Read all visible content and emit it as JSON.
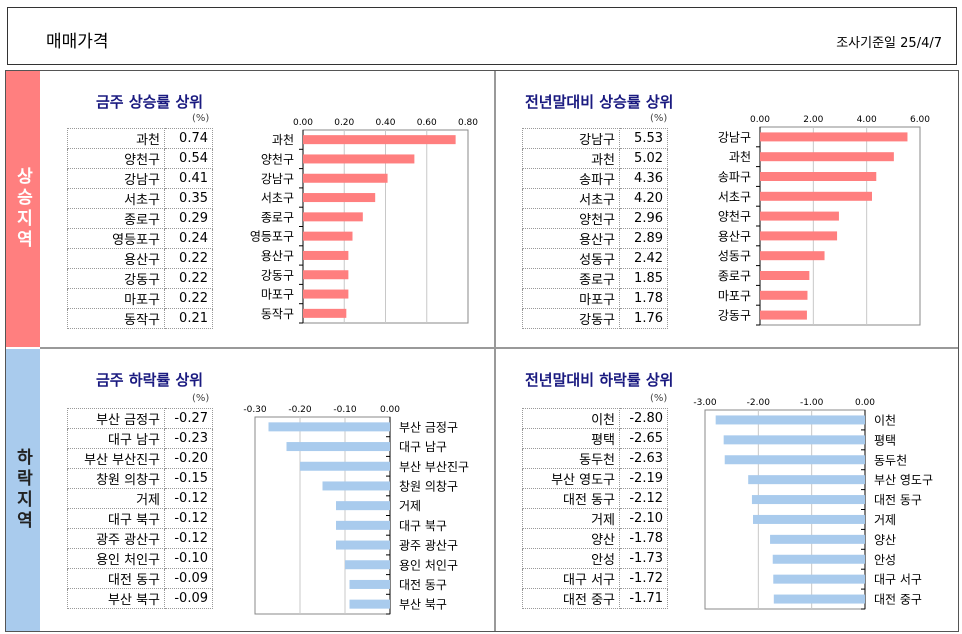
{
  "header": {
    "title": "매매가격",
    "survey_label": "조사기준일",
    "survey_date": "25/4/7"
  },
  "bands": {
    "rise": "상승지역",
    "fall": "하락지역"
  },
  "chart_data": [
    {
      "type": "bar",
      "orientation": "horizontal",
      "title": "금주 상승률 상위",
      "unit": "(%)",
      "categories": [
        "과천",
        "양천구",
        "강남구",
        "서초구",
        "종로구",
        "영등포구",
        "용산구",
        "강동구",
        "마포구",
        "동작구"
      ],
      "values": [
        0.74,
        0.54,
        0.41,
        0.35,
        0.29,
        0.24,
        0.22,
        0.22,
        0.22,
        0.21
      ],
      "value_labels": [
        "0.74",
        "0.54",
        "0.41",
        "0.35",
        "0.29",
        "0.24",
        "0.22",
        "0.22",
        "0.22",
        "0.21"
      ],
      "xlim": [
        0,
        0.8
      ],
      "ticks": [
        "0.00",
        "0.20",
        "0.40",
        "0.60",
        "0.80"
      ],
      "color": "#ff7f7f",
      "grid": true
    },
    {
      "type": "bar",
      "orientation": "horizontal",
      "title": "전년말대비 상승률 상위",
      "unit": "(%)",
      "categories": [
        "강남구",
        "과천",
        "송파구",
        "서초구",
        "양천구",
        "용산구",
        "성동구",
        "종로구",
        "마포구",
        "강동구"
      ],
      "values": [
        5.53,
        5.02,
        4.36,
        4.2,
        2.96,
        2.89,
        2.42,
        1.85,
        1.78,
        1.76
      ],
      "value_labels": [
        "5.53",
        "5.02",
        "4.36",
        "4.20",
        "2.96",
        "2.89",
        "2.42",
        "1.85",
        "1.78",
        "1.76"
      ],
      "xlim": [
        0,
        6
      ],
      "ticks": [
        "0.00",
        "2.00",
        "4.00",
        "6.00"
      ],
      "color": "#ff7f7f",
      "grid": true
    },
    {
      "type": "bar",
      "orientation": "horizontal",
      "title": "금주 하락률 상위",
      "unit": "(%)",
      "categories": [
        "부산 금정구",
        "대구 남구",
        "부산 부산진구",
        "창원 의창구",
        "거제",
        "대구 북구",
        "광주 광산구",
        "용인 처인구",
        "대전 동구",
        "부산 북구"
      ],
      "values": [
        -0.27,
        -0.23,
        -0.2,
        -0.15,
        -0.12,
        -0.12,
        -0.12,
        -0.1,
        -0.09,
        -0.09
      ],
      "value_labels": [
        "-0.27",
        "-0.23",
        "-0.20",
        "-0.15",
        "-0.12",
        "-0.12",
        "-0.12",
        "-0.10",
        "-0.09",
        "-0.09"
      ],
      "xlim": [
        -0.3,
        0
      ],
      "ticks": [
        "-0.30",
        "-0.20",
        "-0.10",
        "0.00"
      ],
      "color": "#a9cbed",
      "grid": true
    },
    {
      "type": "bar",
      "orientation": "horizontal",
      "title": "전년말대비 하락률 상위",
      "unit": "(%)",
      "categories": [
        "이천",
        "평택",
        "동두천",
        "부산 영도구",
        "대전 동구",
        "거제",
        "양산",
        "안성",
        "대구 서구",
        "대전 중구"
      ],
      "values": [
        -2.8,
        -2.65,
        -2.63,
        -2.19,
        -2.12,
        -2.1,
        -1.78,
        -1.73,
        -1.72,
        -1.71
      ],
      "value_labels": [
        "-2.80",
        "-2.65",
        "-2.63",
        "-2.19",
        "-2.12",
        "-2.10",
        "-1.78",
        "-1.73",
        "-1.72",
        "-1.71"
      ],
      "xlim": [
        -3,
        0
      ],
      "ticks": [
        "-3.00",
        "-2.00",
        "-1.00",
        "0.00"
      ],
      "color": "#a9cbed",
      "grid": true
    }
  ]
}
